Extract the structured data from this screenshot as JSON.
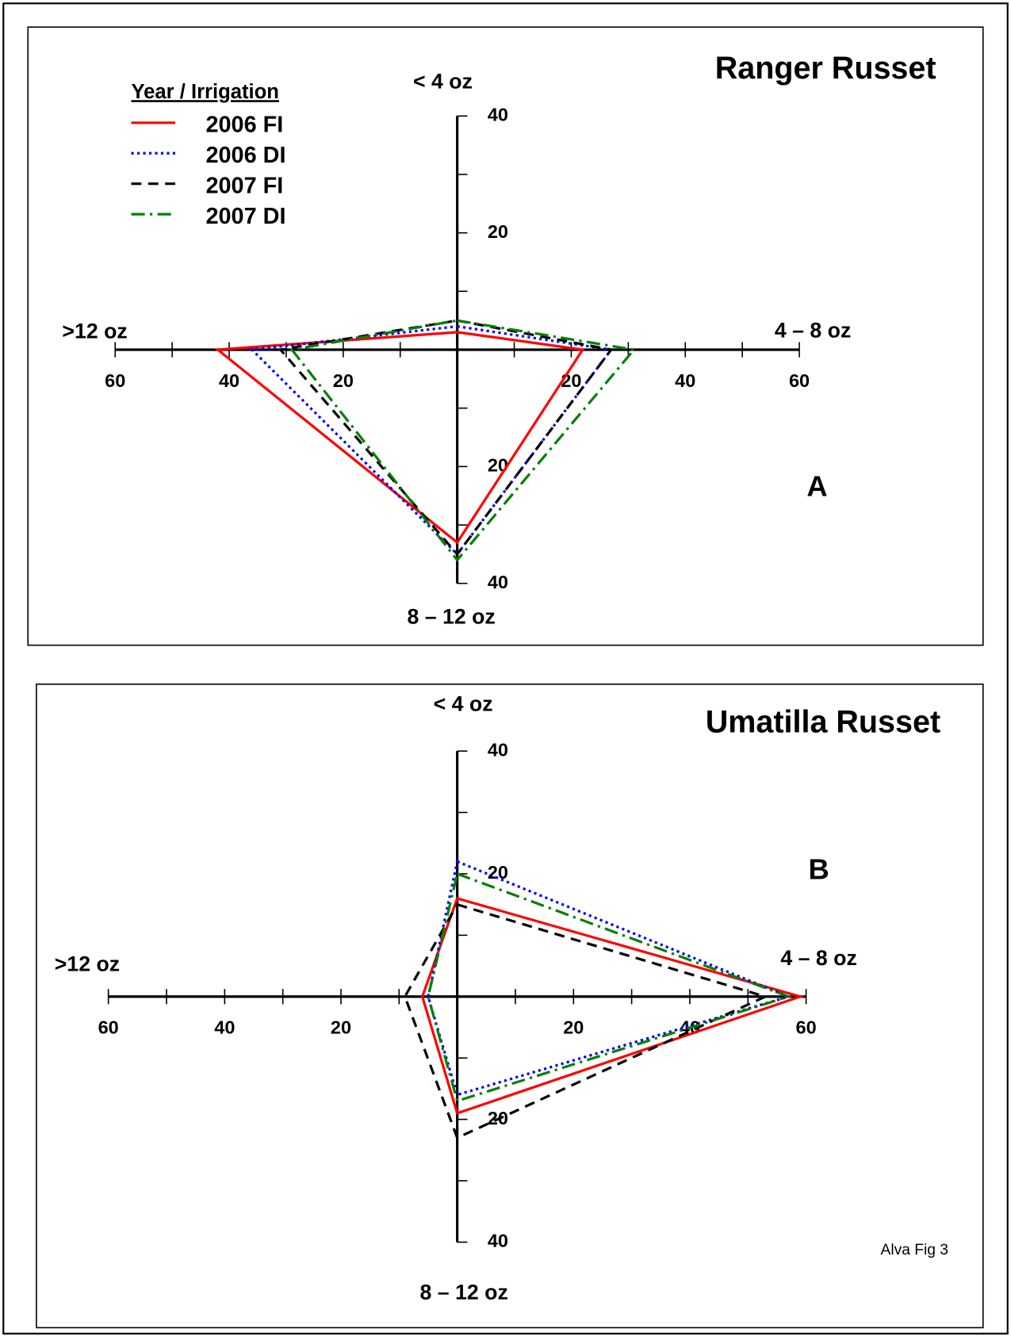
{
  "chart_data": [
    {
      "type": "radar",
      "title": "Ranger Russet",
      "panel_label": "A",
      "categories": [
        "< 4 oz",
        "4 – 8 oz",
        "8 – 12 oz",
        ">12 oz"
      ],
      "legend": true,
      "legend_title": "Year / Irrigation",
      "series": [
        {
          "name": "2006 FI",
          "color": "#ff0000",
          "dash": "solid",
          "values": [
            3,
            22,
            33,
            42
          ]
        },
        {
          "name": "2006 DI",
          "color": "#0000ff",
          "dash": "dotted",
          "values": [
            4,
            27,
            35,
            36
          ]
        },
        {
          "name": "2007 FI",
          "color": "#000000",
          "dash": "dashed",
          "values": [
            5,
            27,
            35,
            31
          ]
        },
        {
          "name": "2007 DI",
          "color": "#008000",
          "dash": "dashdot",
          "values": [
            5,
            31,
            36,
            29
          ]
        }
      ],
      "xlim": [
        -60,
        60
      ],
      "ylim": [
        -40,
        40
      ],
      "xticks": [
        {
          "value": -60,
          "label": "60"
        },
        {
          "value": -40,
          "label": "40"
        },
        {
          "value": -20,
          "label": "20"
        },
        20,
        40,
        60
      ],
      "xminor": [
        -50,
        -30,
        -10,
        10,
        30,
        50
      ],
      "yticks": [
        {
          "value": -40,
          "label": "40"
        },
        {
          "value": -20,
          "label": "20"
        },
        20,
        40
      ],
      "yminor": [
        -30,
        -10,
        10,
        30
      ]
    },
    {
      "type": "radar",
      "title": "Umatilla Russet",
      "panel_label": "B",
      "categories": [
        "< 4 oz",
        "4 – 8 oz",
        "8 – 12 oz",
        ">12 oz"
      ],
      "legend": false,
      "series": [
        {
          "color": "#ff0000",
          "dash": "solid",
          "values": [
            16,
            59,
            19,
            6
          ]
        },
        {
          "color": "#0000ff",
          "dash": "dotted",
          "values": [
            22,
            57,
            16,
            5
          ]
        },
        {
          "color": "#000000",
          "dash": "dashed",
          "values": [
            15,
            53,
            23,
            9
          ]
        },
        {
          "color": "#008000",
          "dash": "dashdot",
          "values": [
            20,
            57,
            17,
            5
          ]
        }
      ],
      "xlim": [
        -60,
        60
      ],
      "ylim": [
        -40,
        40
      ],
      "xticks": [
        {
          "value": -60,
          "label": "60"
        },
        {
          "value": -40,
          "label": "40"
        },
        {
          "value": -20,
          "label": "20"
        },
        20,
        40,
        60
      ],
      "xminor": [
        -50,
        -30,
        -10,
        10,
        30,
        50
      ],
      "yticks": [
        {
          "value": -40,
          "label": "40"
        },
        {
          "value": -20,
          "label": "20"
        },
        20,
        40
      ],
      "yminor": [
        -30,
        -10,
        10,
        30
      ]
    }
  ],
  "footnote": "Alva Fig 3"
}
